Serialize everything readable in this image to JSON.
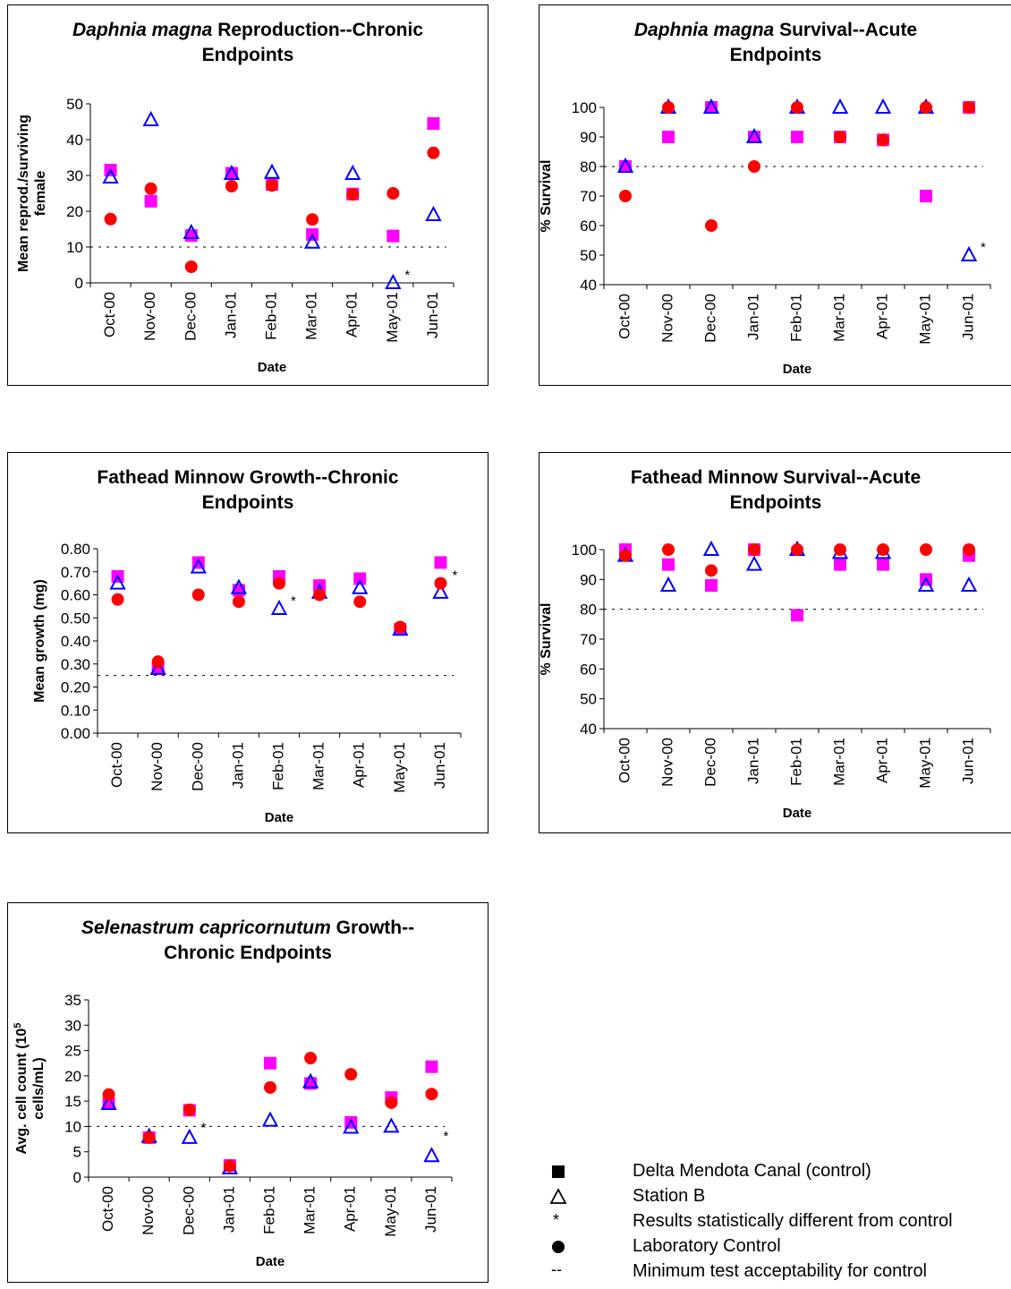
{
  "chart_data": [
    {
      "type": "scatter",
      "title_parts": [
        {
          "text": "Daphnia magna",
          "italic": true
        },
        {
          "text": " Reproduction--Chronic",
          "italic": false
        }
      ],
      "title_line2": "Endpoints",
      "xlabel": "Date",
      "ylabel_lines": [
        "Mean reprod./surviving",
        "female"
      ],
      "categories": [
        "Oct-00",
        "Nov-00",
        "Dec-00",
        "Jan-01",
        "Feb-01",
        "Mar-01",
        "Apr-01",
        "May-01",
        "Jun-01"
      ],
      "ylim": [
        0,
        50
      ],
      "yticks": [
        0,
        10,
        20,
        30,
        40,
        50
      ],
      "ytick_labels": [
        "0",
        "10",
        "20",
        "30",
        "40",
        "50"
      ],
      "threshold": 10,
      "series": [
        {
          "name": "Delta Mendota Canal (control)",
          "marker": "square",
          "color": "#ff00ff",
          "values": [
            31.5,
            22.8,
            13.2,
            30.6,
            27.5,
            13.5,
            24.8,
            13.1,
            44.5
          ]
        },
        {
          "name": "Station B",
          "marker": "triangle",
          "color": "#0000ff",
          "values": [
            29.5,
            45.5,
            14.0,
            30.5,
            30.8,
            11.3,
            30.5,
            0,
            19.0
          ]
        },
        {
          "name": "Laboratory Control",
          "marker": "circle",
          "color": "#ff0000",
          "values": [
            17.8,
            26.3,
            4.5,
            27.0,
            27.2,
            17.7,
            24.7,
            25.0,
            36.3
          ]
        }
      ],
      "stars": [
        {
          "index": 7,
          "value": 0
        }
      ]
    },
    {
      "type": "scatter",
      "title_parts": [
        {
          "text": "Daphnia magna",
          "italic": true
        },
        {
          "text": " Survival--Acute",
          "italic": false
        }
      ],
      "title_line2": "Endpoints",
      "xlabel": "Date",
      "ylabel_lines": [
        "% Survival"
      ],
      "categories": [
        "Oct-00",
        "Nov-00",
        "Dec-00",
        "Jan-01",
        "Feb-01",
        "Mar-01",
        "Apr-01",
        "May-01",
        "Jun-01"
      ],
      "ylim": [
        40,
        100
      ],
      "yticks": [
        40,
        50,
        60,
        70,
        80,
        90,
        100
      ],
      "ytick_labels": [
        "40",
        "50",
        "60",
        "70",
        "80",
        "90",
        "100"
      ],
      "threshold": 80,
      "series": [
        {
          "name": "Delta Mendota Canal (control)",
          "marker": "square",
          "color": "#ff00ff",
          "values": [
            80,
            90,
            100,
            90,
            90,
            90,
            89,
            70,
            100
          ]
        },
        {
          "name": "Station B",
          "marker": "triangle",
          "color": "#0000ff",
          "values": [
            80,
            100,
            100,
            90,
            100,
            100,
            100,
            100,
            50
          ]
        },
        {
          "name": "Laboratory Control",
          "marker": "circle",
          "color": "#ff0000",
          "values": [
            70,
            100,
            60,
            80,
            100,
            90,
            89,
            100,
            100
          ]
        }
      ],
      "stars": [
        {
          "index": 8,
          "value": 50
        }
      ]
    },
    {
      "type": "scatter",
      "title_parts": [
        {
          "text": "Fathead Minnow Growth--Chronic",
          "italic": false
        }
      ],
      "title_line2": "Endpoints",
      "xlabel": "Date",
      "ylabel_lines": [
        "Mean growth (mg)"
      ],
      "categories": [
        "Oct-00",
        "Nov-00",
        "Dec-00",
        "Jan-01",
        "Feb-01",
        "Mar-01",
        "Apr-01",
        "May-01",
        "Jun-01"
      ],
      "ylim": [
        0,
        0.8
      ],
      "yticks": [
        0,
        0.1,
        0.2,
        0.3,
        0.4,
        0.5,
        0.6,
        0.7,
        0.8
      ],
      "ytick_labels": [
        "0.00",
        "0.10",
        "0.20",
        "0.30",
        "0.40",
        "0.50",
        "0.60",
        "0.70",
        "0.80"
      ],
      "threshold": 0.25,
      "series": [
        {
          "name": "Delta Mendota Canal (control)",
          "marker": "square",
          "color": "#ff00ff",
          "values": [
            0.68,
            0.28,
            0.74,
            0.62,
            0.68,
            0.64,
            0.67,
            0.45,
            0.74
          ]
        },
        {
          "name": "Station B",
          "marker": "triangle",
          "color": "#0000ff",
          "values": [
            0.65,
            0.28,
            0.72,
            0.63,
            0.54,
            0.61,
            0.63,
            0.45,
            0.61
          ]
        },
        {
          "name": "Laboratory Control",
          "marker": "circle",
          "color": "#ff0000",
          "values": [
            0.58,
            0.31,
            0.6,
            0.57,
            0.65,
            0.6,
            0.57,
            0.46,
            0.65
          ]
        }
      ],
      "stars": [
        {
          "index": 4,
          "value": 0.54
        },
        {
          "index": 8,
          "value": 0.65
        }
      ]
    },
    {
      "type": "scatter",
      "title_parts": [
        {
          "text": "Fathead Minnow Survival--Acute",
          "italic": false
        }
      ],
      "title_line2": "Endpoints",
      "xlabel": "Date",
      "ylabel_lines": [
        "% Survival"
      ],
      "categories": [
        "Oct-00",
        "Nov-00",
        "Dec-00",
        "Jan-01",
        "Feb-01",
        "Mar-01",
        "Apr-01",
        "May-01",
        "Jun-01"
      ],
      "ylim": [
        40,
        100
      ],
      "yticks": [
        40,
        50,
        60,
        70,
        80,
        90,
        100
      ],
      "ytick_labels": [
        "40",
        "50",
        "60",
        "70",
        "80",
        "90",
        "100"
      ],
      "threshold": 80,
      "series": [
        {
          "name": "Delta Mendota Canal (control)",
          "marker": "square",
          "color": "#ff00ff",
          "values": [
            100,
            95,
            88,
            100,
            78,
            95,
            95,
            90,
            98
          ]
        },
        {
          "name": "Station B",
          "marker": "triangle",
          "color": "#0000ff",
          "values": [
            98,
            88,
            100,
            95,
            100,
            99,
            99,
            88,
            88
          ]
        },
        {
          "name": "Laboratory Control",
          "marker": "circle",
          "color": "#ff0000",
          "values": [
            98,
            100,
            93,
            100,
            100,
            100,
            100,
            100,
            100
          ]
        }
      ],
      "stars": []
    },
    {
      "type": "scatter",
      "title_parts": [
        {
          "text": "Selenastrum capricornutum",
          "italic": true
        },
        {
          "text": " Growth--",
          "italic": false
        }
      ],
      "title_line2": "Chronic Endpoints",
      "xlabel": "Date",
      "ylabel_lines": [
        "Avg. cell count (10^5",
        "cells/mL)"
      ],
      "categories": [
        "Oct-00",
        "Nov-00",
        "Dec-00",
        "Jan-01",
        "Feb-01",
        "Mar-01",
        "Apr-01",
        "May-01",
        "Jun-01"
      ],
      "ylim": [
        0,
        35
      ],
      "yticks": [
        0,
        5,
        10,
        15,
        20,
        25,
        30,
        35
      ],
      "ytick_labels": [
        "0",
        "5",
        "10",
        "15",
        "20",
        "25",
        "30",
        "35"
      ],
      "threshold": 10,
      "series": [
        {
          "name": "Delta Mendota Canal (control)",
          "marker": "square",
          "color": "#ff00ff",
          "values": [
            14.5,
            7.8,
            13.2,
            2.3,
            22.5,
            18.5,
            10.8,
            15.7,
            21.8
          ]
        },
        {
          "name": "Station B",
          "marker": "triangle",
          "color": "#0000ff",
          "values": [
            14.5,
            8.0,
            7.8,
            1.8,
            11.2,
            18.8,
            9.8,
            10.0,
            4.2
          ]
        },
        {
          "name": "Laboratory Control",
          "marker": "circle",
          "color": "#ff0000",
          "values": [
            16.3,
            7.8,
            13.3,
            2.2,
            17.7,
            23.5,
            20.3,
            14.7,
            16.4
          ]
        }
      ],
      "stars": [
        {
          "index": 2,
          "value": 8.2
        },
        {
          "index": 8,
          "value": 6.5
        }
      ]
    }
  ],
  "legend": {
    "items": [
      {
        "icon": "square",
        "label": "Delta Mendota Canal (control)"
      },
      {
        "icon": "triangle",
        "label": "Station B"
      },
      {
        "icon": "star",
        "symbol": "*",
        "label": "Results statistically different from control"
      },
      {
        "icon": "circle",
        "label": "Laboratory Control"
      },
      {
        "icon": "dash",
        "symbol": "--",
        "label": "Minimum test acceptability for control"
      }
    ]
  }
}
